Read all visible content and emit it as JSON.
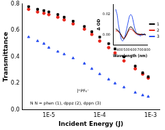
{
  "chart_data": [
    {
      "type": "scatter",
      "x_label": "Incident Energy (J)",
      "y_label": "Transmittance",
      "log": "x",
      "grid": false,
      "xlim": [
        3e-06,
        0.0015
      ],
      "xticks": [
        {
          "value": 1e-05,
          "label": "1E-5"
        },
        {
          "value": 0.0001,
          "label": "1E-4"
        },
        {
          "value": 0.001,
          "label": "1E-3"
        }
      ],
      "ylim": [
        0,
        0.8
      ],
      "yticks": [
        {
          "value": 0,
          "label": "0.0"
        },
        {
          "value": 0.2,
          "label": "0.2"
        },
        {
          "value": 0.4,
          "label": "0.4"
        },
        {
          "value": 0.6,
          "label": "0.6"
        },
        {
          "value": 0.8,
          "label": "0.8"
        }
      ],
      "x": [
        4e-06,
        6e-06,
        8e-06,
        1e-05,
        1.5e-05,
        2e-05,
        3e-05,
        5e-05,
        7e-05,
        0.0001,
        0.00015,
        0.0002,
        0.0003,
        0.0005,
        0.0007,
        0.0009
      ],
      "series": [
        {
          "name": "1",
          "color": "#000000",
          "marker": "square",
          "values": [
            0.78,
            0.76,
            0.75,
            0.74,
            0.72,
            0.7,
            0.67,
            0.63,
            0.59,
            0.55,
            0.5,
            0.46,
            0.4,
            0.33,
            0.28,
            0.25
          ]
        },
        {
          "name": "2",
          "color": "#e8261c",
          "marker": "circle",
          "values": [
            0.76,
            0.74,
            0.73,
            0.72,
            0.7,
            0.68,
            0.65,
            0.61,
            0.57,
            0.52,
            0.47,
            0.43,
            0.37,
            0.31,
            0.27,
            0.24
          ]
        },
        {
          "name": "3",
          "color": "#2a4ff0",
          "marker": "triangle",
          "values": [
            0.55,
            0.52,
            0.5,
            0.47,
            0.44,
            0.42,
            0.39,
            0.35,
            0.31,
            0.27,
            0.23,
            0.2,
            0.17,
            0.13,
            0.11,
            0.1
          ]
        }
      ],
      "annotations": [
        "]⁺PF₆⁻",
        "N N = phen (1), dppz (2), dppn (3)"
      ]
    },
    {
      "type": "line",
      "x_label": "Wavelength (nm)",
      "y_label": "Δ OD",
      "grid": false,
      "legend": "right",
      "xlim": [
        300,
        800
      ],
      "xticks": [
        400,
        500,
        600,
        700,
        800
      ],
      "ylim": [
        -0.01,
        0.03
      ],
      "yticks": [
        {
          "value": 0,
          "label": "0.00"
        },
        {
          "value": 0.02,
          "label": "0.02"
        }
      ],
      "x": [
        340,
        360,
        380,
        400,
        420,
        440,
        460,
        480,
        500,
        520,
        540,
        560,
        580,
        600,
        620,
        640,
        660,
        680,
        700,
        720,
        740,
        760,
        780
      ],
      "series": [
        {
          "name": "1",
          "color": "#000000",
          "values": [
            0.006,
            0.005,
            0.004,
            0.002,
            0.0,
            -0.003,
            -0.004,
            -0.002,
            0.001,
            0.004,
            0.007,
            0.008,
            0.007,
            0.005,
            0.003,
            0.002,
            0.001,
            0.001,
            0.0,
            0.001,
            0.0,
            0.001,
            0.0
          ]
        },
        {
          "name": "2",
          "color": "#e8261c",
          "values": [
            0.004,
            0.004,
            0.003,
            0.002,
            0.0,
            -0.002,
            -0.003,
            -0.002,
            0.0,
            0.003,
            0.005,
            0.006,
            0.005,
            0.004,
            0.002,
            0.001,
            0.001,
            0.0,
            0.001,
            0.0,
            0.0,
            0.001,
            0.0
          ]
        },
        {
          "name": "3",
          "color": "#2a4ff0",
          "values": [
            0.025,
            0.02,
            0.01,
            0.003,
            -0.004,
            -0.006,
            -0.004,
            0.0,
            0.006,
            0.012,
            0.018,
            0.02,
            0.018,
            0.012,
            0.006,
            0.002,
            0.0,
            0.0,
            -0.001,
            0.0,
            0.001,
            0.0,
            0.0
          ]
        }
      ]
    }
  ]
}
